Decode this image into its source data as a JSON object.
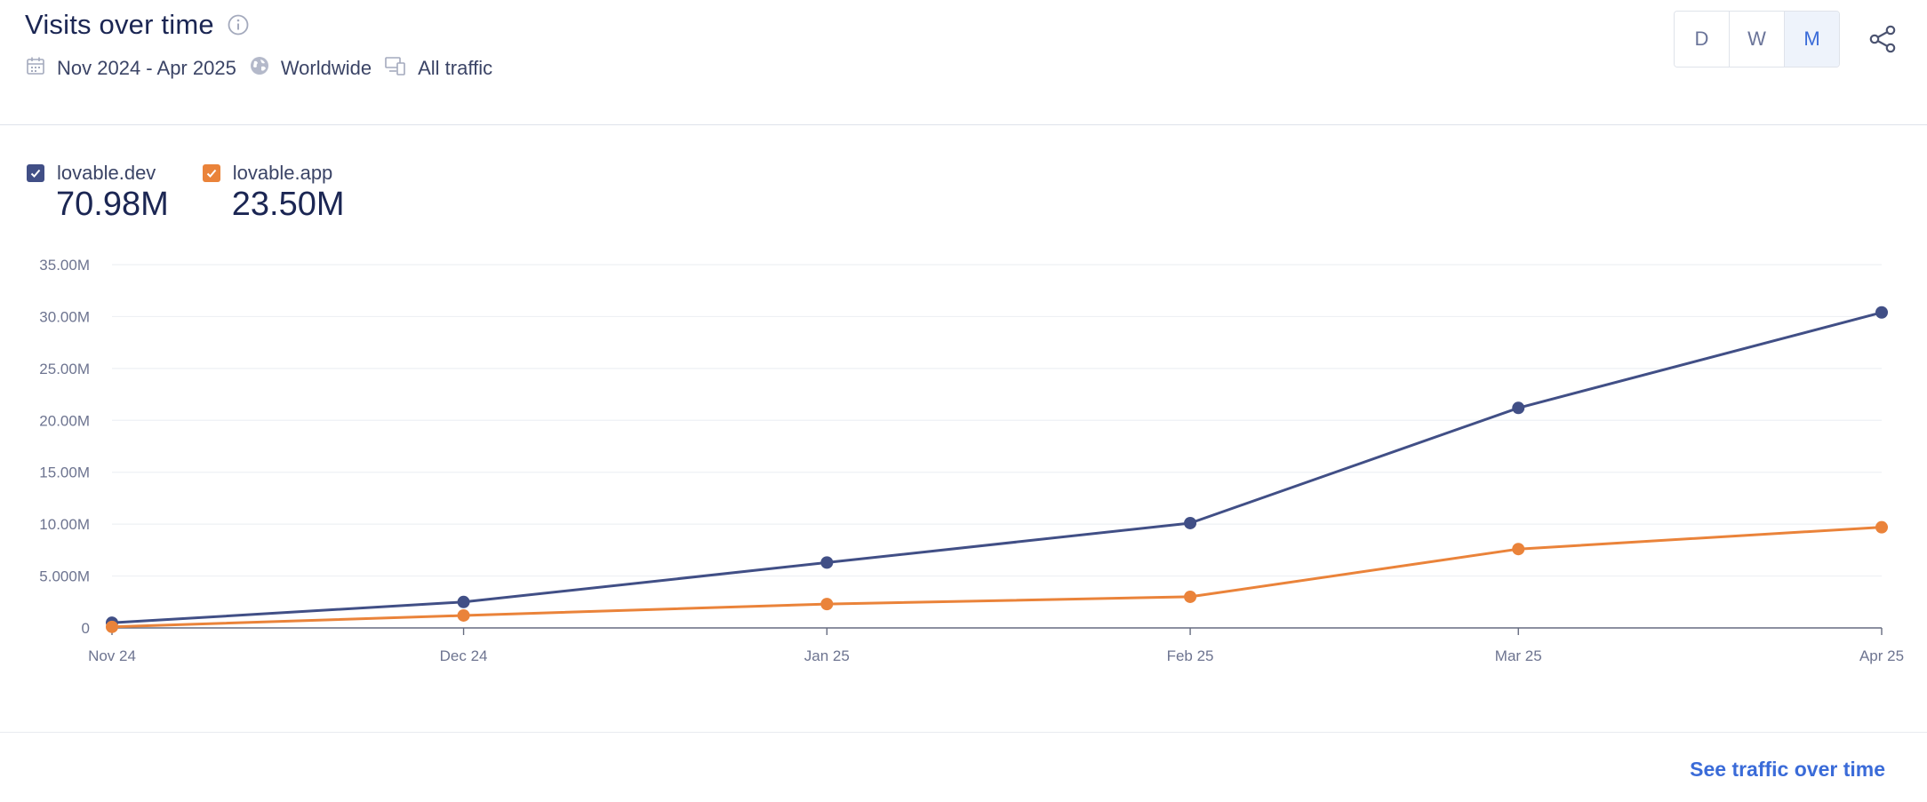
{
  "header": {
    "title": "Visits over time",
    "date_range": "Nov 2024 - Apr 2025",
    "region": "Worldwide",
    "traffic": "All traffic",
    "icons": [
      "info-icon",
      "calendar-icon",
      "globe-icon",
      "devices-icon",
      "share-icon"
    ]
  },
  "granularity": {
    "options": [
      "D",
      "W",
      "M"
    ],
    "selected": "M"
  },
  "legend": [
    {
      "name": "lovable.dev",
      "total": "70.98M",
      "color": "#414f86",
      "checked": true
    },
    {
      "name": "lovable.app",
      "total": "23.50M",
      "color": "#ea833a",
      "checked": true
    }
  ],
  "footer": {
    "link": "See traffic over time"
  },
  "chart_data": {
    "type": "line",
    "x": [
      "Nov 24",
      "Dec 24",
      "Jan 25",
      "Feb 25",
      "Mar 25",
      "Apr 25"
    ],
    "x_days": [
      0,
      30,
      61,
      92,
      120,
      151
    ],
    "series": [
      {
        "name": "lovable.dev",
        "color": "#414f86",
        "values": [
          0.5,
          2.5,
          6.3,
          10.1,
          21.2,
          30.4
        ]
      },
      {
        "name": "lovable.app",
        "color": "#ea833a",
        "values": [
          0.1,
          1.2,
          2.3,
          3.0,
          7.6,
          9.7
        ]
      }
    ],
    "yticks": [
      0,
      5,
      10,
      15,
      20,
      25,
      30,
      35
    ],
    "ytick_labels": [
      "0",
      "5.000M",
      "10.00M",
      "15.00M",
      "20.00M",
      "25.00M",
      "30.00M",
      "35.00M"
    ],
    "ylim": [
      0,
      35
    ],
    "grid": true,
    "legend_position": "top-left"
  }
}
